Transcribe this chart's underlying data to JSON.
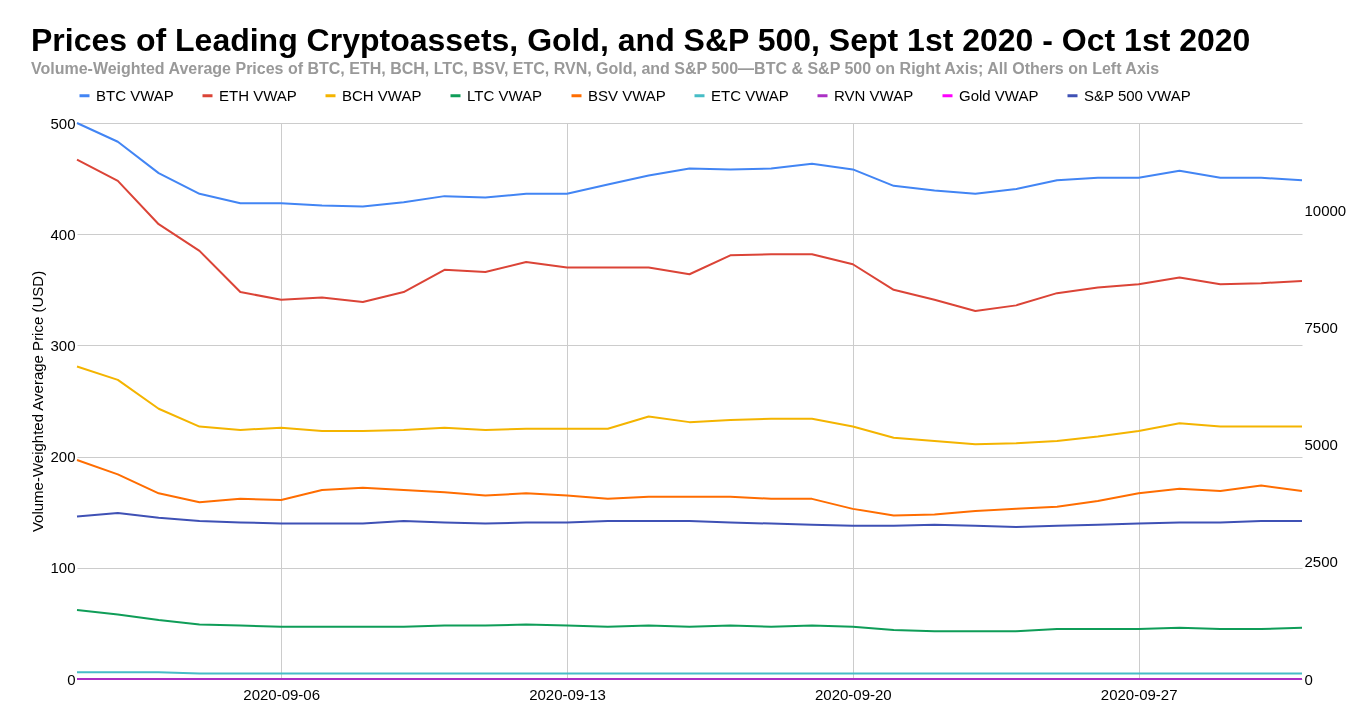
{
  "chart_data": {
    "type": "line",
    "title": "Prices of Leading Cryptoassets, Gold, and S&P 500, Sept 1st 2020 - Oct 1st 2020",
    "subtitle": "Volume-Weighted Average Prices of BTC, ETH, BCH, LTC, BSV, ETC, RVN, Gold, and S&P 500—BTC & S&P 500 on Right Axis; All Others on Left Axis",
    "ylabel": "Volume-Weighted Average Price (USD)",
    "x": [
      "2020-09-01",
      "2020-09-02",
      "2020-09-03",
      "2020-09-04",
      "2020-09-05",
      "2020-09-06",
      "2020-09-07",
      "2020-09-08",
      "2020-09-09",
      "2020-09-10",
      "2020-09-11",
      "2020-09-12",
      "2020-09-13",
      "2020-09-14",
      "2020-09-15",
      "2020-09-16",
      "2020-09-17",
      "2020-09-18",
      "2020-09-19",
      "2020-09-20",
      "2020-09-21",
      "2020-09-22",
      "2020-09-23",
      "2020-09-24",
      "2020-09-25",
      "2020-09-26",
      "2020-09-27",
      "2020-09-28",
      "2020-09-29",
      "2020-09-30",
      "2020-10-01"
    ],
    "xlim": [
      "2020-09-01",
      "2020-10-01"
    ],
    "xticks": [
      "2020-09-06",
      "2020-09-13",
      "2020-09-20",
      "2020-09-27"
    ],
    "ylim": [
      0,
      500
    ],
    "yticks": [
      0,
      100,
      200,
      300,
      400,
      500
    ],
    "y2lim": [
      0,
      11860
    ],
    "y2ticks": [
      0,
      2500,
      5000,
      7500,
      10000
    ],
    "grid": true,
    "legend": "top",
    "marker": "none",
    "line_style": "solid",
    "series": [
      {
        "name": "BTC VWAP",
        "color": "#4285f4",
        "axis": "y2",
        "values": [
          11860,
          11460,
          10790,
          10350,
          10150,
          10150,
          10100,
          10080,
          10170,
          10300,
          10270,
          10350,
          10350,
          10550,
          10740,
          10890,
          10870,
          10890,
          10990,
          10870,
          10520,
          10420,
          10350,
          10450,
          10640,
          10690,
          10690,
          10840,
          10690,
          10690,
          10640
        ]
      },
      {
        "name": "ETH VWAP",
        "color": "#db4437",
        "values": [
          467,
          448,
          409,
          385,
          348,
          341,
          343,
          339,
          348,
          368,
          366,
          375,
          370,
          370,
          370,
          364,
          381,
          382,
          382,
          373,
          350,
          341,
          331,
          336,
          347,
          352,
          355,
          361,
          355,
          356,
          358
        ]
      },
      {
        "name": "BCH VWAP",
        "color": "#f4b400",
        "values": [
          281,
          269,
          243,
          227,
          224,
          226,
          223,
          223,
          224,
          226,
          224,
          225,
          225,
          225,
          236,
          231,
          233,
          234,
          234,
          227,
          217,
          214,
          211,
          212,
          214,
          218,
          223,
          230,
          227,
          227,
          227
        ]
      },
      {
        "name": "LTC VWAP",
        "color": "#0f9d58",
        "values": [
          62,
          58,
          53,
          49,
          48,
          47,
          47,
          47,
          47,
          48,
          48,
          49,
          48,
          47,
          48,
          47,
          48,
          47,
          48,
          47,
          44,
          43,
          43,
          43,
          45,
          45,
          45,
          46,
          45,
          45,
          46
        ]
      },
      {
        "name": "BSV VWAP",
        "color": "#ff6d01",
        "values": [
          197,
          184,
          167,
          159,
          162,
          161,
          170,
          172,
          170,
          168,
          165,
          167,
          165,
          162,
          164,
          164,
          164,
          162,
          162,
          153,
          147,
          148,
          151,
          153,
          155,
          160,
          167,
          171,
          169,
          174,
          169
        ]
      },
      {
        "name": "ETC VWAP",
        "color": "#46bdc6",
        "values": [
          6,
          6,
          6,
          5,
          5,
          5,
          5,
          5,
          5,
          5,
          5,
          5,
          5,
          5,
          5,
          5,
          5,
          5,
          5,
          5,
          5,
          5,
          5,
          5,
          5,
          5,
          5,
          5,
          5,
          5,
          5
        ]
      },
      {
        "name": "RVN VWAP",
        "color": "#ab30c4",
        "values": [
          0,
          0,
          0,
          0,
          0,
          0,
          0,
          0,
          0,
          0,
          0,
          0,
          0,
          0,
          0,
          0,
          0,
          0,
          0,
          0,
          0,
          0,
          0,
          0,
          0,
          0,
          0,
          0,
          0,
          0,
          0
        ]
      },
      {
        "name": "Gold VWAP",
        "color": "#ff00ff",
        "values": [
          null,
          null,
          null,
          null,
          null,
          null,
          null,
          null,
          null,
          null,
          null,
          null,
          null,
          null,
          null,
          null,
          null,
          null,
          null,
          null,
          null,
          null,
          null,
          null,
          null,
          null,
          null,
          null,
          null,
          null,
          null
        ]
      },
      {
        "name": "S&P 500 VWAP",
        "color": "#3f51b5",
        "axis": "y2",
        "values": [
          3465,
          3540,
          3440,
          3370,
          3340,
          3315,
          3315,
          3315,
          3370,
          3340,
          3315,
          3340,
          3340,
          3370,
          3370,
          3370,
          3340,
          3315,
          3290,
          3270,
          3270,
          3290,
          3270,
          3240,
          3270,
          3290,
          3315,
          3340,
          3340,
          3370,
          3370
        ]
      }
    ]
  }
}
